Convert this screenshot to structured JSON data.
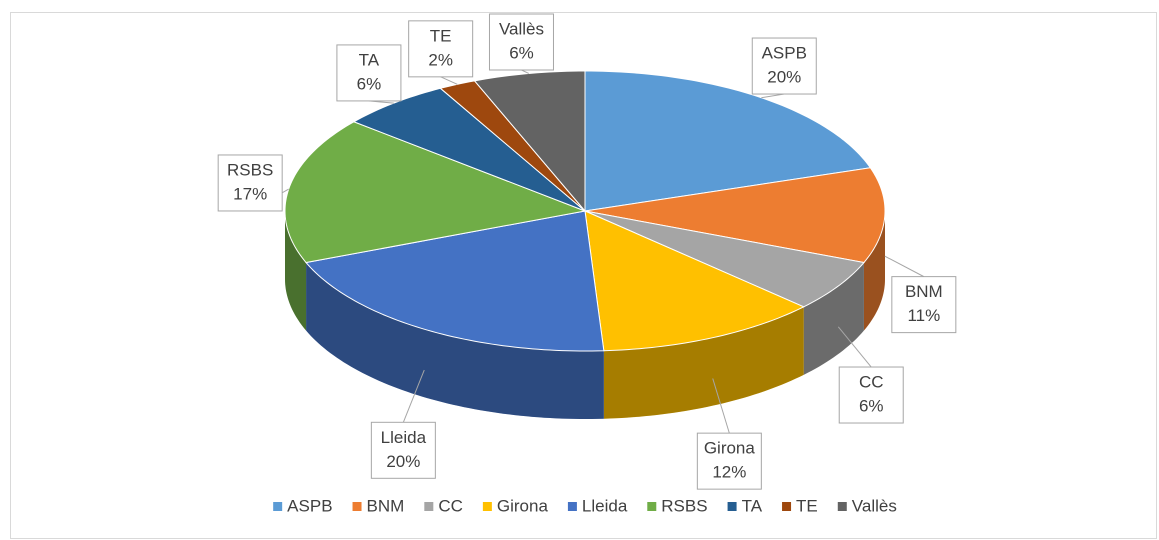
{
  "chart_data": {
    "type": "pie3d",
    "categories": [
      "ASPB",
      "BNM",
      "CC",
      "Girona",
      "Lleida",
      "RSBS",
      "TA",
      "TE",
      "Vallès"
    ],
    "values": [
      20,
      11,
      6,
      12,
      20,
      17,
      6,
      2,
      6
    ],
    "value_labels": [
      "20%",
      "11%",
      "6%",
      "12%",
      "20%",
      "17%",
      "6%",
      "2%",
      "6%"
    ],
    "colors": [
      "#5b9bd5",
      "#ed7d31",
      "#a5a5a5",
      "#ffc000",
      "#4472c4",
      "#70ad47",
      "#255e91",
      "#9e480e",
      "#636363"
    ],
    "legend": "bottom"
  }
}
